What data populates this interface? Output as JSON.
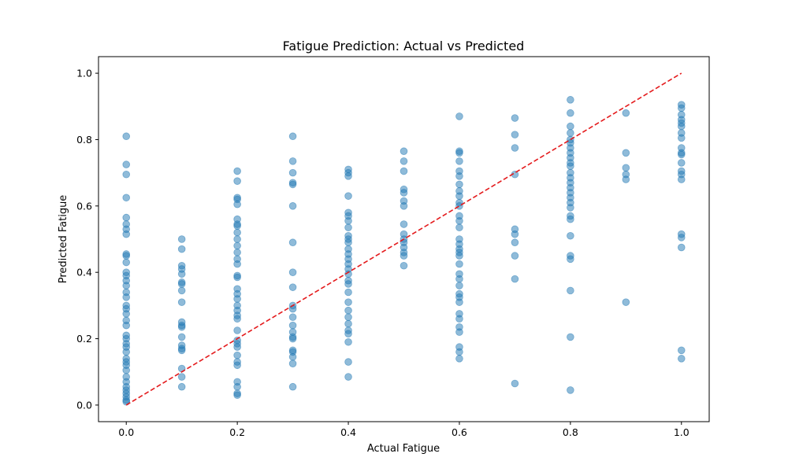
{
  "chart_data": {
    "type": "scatter",
    "title": "Fatigue Prediction: Actual vs Predicted",
    "xlabel": "Actual Fatigue",
    "ylabel": "Predicted Fatigue",
    "xlim": [
      -0.05,
      1.05
    ],
    "ylim": [
      -0.05,
      1.05
    ],
    "xticks": [
      "0.0",
      "0.2",
      "0.4",
      "0.6",
      "0.8",
      "1.0"
    ],
    "yticks": [
      "0.0",
      "0.2",
      "0.4",
      "0.6",
      "0.8",
      "1.0"
    ],
    "grid": false,
    "point_color": "#1f77b4",
    "reference_line": {
      "x": [
        0,
        1
      ],
      "y": [
        0,
        1
      ],
      "color": "#e41a1c",
      "style": "dashed"
    },
    "points": [
      {
        "x": 0.0,
        "y": 0.81
      },
      {
        "x": 0.0,
        "y": 0.725
      },
      {
        "x": 0.0,
        "y": 0.695
      },
      {
        "x": 0.0,
        "y": 0.625
      },
      {
        "x": 0.0,
        "y": 0.565
      },
      {
        "x": 0.0,
        "y": 0.545
      },
      {
        "x": 0.0,
        "y": 0.53
      },
      {
        "x": 0.0,
        "y": 0.515
      },
      {
        "x": 0.0,
        "y": 0.455
      },
      {
        "x": 0.0,
        "y": 0.45
      },
      {
        "x": 0.0,
        "y": 0.43
      },
      {
        "x": 0.0,
        "y": 0.4
      },
      {
        "x": 0.0,
        "y": 0.39
      },
      {
        "x": 0.0,
        "y": 0.375
      },
      {
        "x": 0.0,
        "y": 0.36
      },
      {
        "x": 0.0,
        "y": 0.34
      },
      {
        "x": 0.0,
        "y": 0.325
      },
      {
        "x": 0.0,
        "y": 0.3
      },
      {
        "x": 0.0,
        "y": 0.29
      },
      {
        "x": 0.0,
        "y": 0.275
      },
      {
        "x": 0.0,
        "y": 0.255
      },
      {
        "x": 0.0,
        "y": 0.24
      },
      {
        "x": 0.0,
        "y": 0.21
      },
      {
        "x": 0.0,
        "y": 0.2
      },
      {
        "x": 0.0,
        "y": 0.185
      },
      {
        "x": 0.0,
        "y": 0.175
      },
      {
        "x": 0.0,
        "y": 0.16
      },
      {
        "x": 0.0,
        "y": 0.14
      },
      {
        "x": 0.0,
        "y": 0.13
      },
      {
        "x": 0.0,
        "y": 0.12
      },
      {
        "x": 0.0,
        "y": 0.105
      },
      {
        "x": 0.0,
        "y": 0.085
      },
      {
        "x": 0.0,
        "y": 0.07
      },
      {
        "x": 0.0,
        "y": 0.055
      },
      {
        "x": 0.0,
        "y": 0.045
      },
      {
        "x": 0.0,
        "y": 0.035
      },
      {
        "x": 0.0,
        "y": 0.025
      },
      {
        "x": 0.0,
        "y": 0.015
      },
      {
        "x": 0.0,
        "y": 0.01
      },
      {
        "x": 0.1,
        "y": 0.5
      },
      {
        "x": 0.1,
        "y": 0.47
      },
      {
        "x": 0.1,
        "y": 0.42
      },
      {
        "x": 0.1,
        "y": 0.41
      },
      {
        "x": 0.1,
        "y": 0.395
      },
      {
        "x": 0.1,
        "y": 0.37
      },
      {
        "x": 0.1,
        "y": 0.365
      },
      {
        "x": 0.1,
        "y": 0.345
      },
      {
        "x": 0.1,
        "y": 0.31
      },
      {
        "x": 0.1,
        "y": 0.25
      },
      {
        "x": 0.1,
        "y": 0.24
      },
      {
        "x": 0.1,
        "y": 0.235
      },
      {
        "x": 0.1,
        "y": 0.205
      },
      {
        "x": 0.1,
        "y": 0.18
      },
      {
        "x": 0.1,
        "y": 0.17
      },
      {
        "x": 0.1,
        "y": 0.165
      },
      {
        "x": 0.1,
        "y": 0.11
      },
      {
        "x": 0.1,
        "y": 0.085
      },
      {
        "x": 0.1,
        "y": 0.055
      },
      {
        "x": 0.2,
        "y": 0.705
      },
      {
        "x": 0.2,
        "y": 0.675
      },
      {
        "x": 0.2,
        "y": 0.625
      },
      {
        "x": 0.2,
        "y": 0.62
      },
      {
        "x": 0.2,
        "y": 0.605
      },
      {
        "x": 0.2,
        "y": 0.56
      },
      {
        "x": 0.2,
        "y": 0.545
      },
      {
        "x": 0.2,
        "y": 0.54
      },
      {
        "x": 0.2,
        "y": 0.52
      },
      {
        "x": 0.2,
        "y": 0.5
      },
      {
        "x": 0.2,
        "y": 0.48
      },
      {
        "x": 0.2,
        "y": 0.46
      },
      {
        "x": 0.2,
        "y": 0.44
      },
      {
        "x": 0.2,
        "y": 0.425
      },
      {
        "x": 0.2,
        "y": 0.39
      },
      {
        "x": 0.2,
        "y": 0.385
      },
      {
        "x": 0.2,
        "y": 0.35
      },
      {
        "x": 0.2,
        "y": 0.335
      },
      {
        "x": 0.2,
        "y": 0.32
      },
      {
        "x": 0.2,
        "y": 0.3
      },
      {
        "x": 0.2,
        "y": 0.285
      },
      {
        "x": 0.2,
        "y": 0.27
      },
      {
        "x": 0.2,
        "y": 0.26
      },
      {
        "x": 0.2,
        "y": 0.225
      },
      {
        "x": 0.2,
        "y": 0.195
      },
      {
        "x": 0.2,
        "y": 0.185
      },
      {
        "x": 0.2,
        "y": 0.175
      },
      {
        "x": 0.2,
        "y": 0.15
      },
      {
        "x": 0.2,
        "y": 0.13
      },
      {
        "x": 0.2,
        "y": 0.12
      },
      {
        "x": 0.2,
        "y": 0.07
      },
      {
        "x": 0.2,
        "y": 0.055
      },
      {
        "x": 0.2,
        "y": 0.035
      },
      {
        "x": 0.2,
        "y": 0.03
      },
      {
        "x": 0.3,
        "y": 0.81
      },
      {
        "x": 0.3,
        "y": 0.735
      },
      {
        "x": 0.3,
        "y": 0.7
      },
      {
        "x": 0.3,
        "y": 0.67
      },
      {
        "x": 0.3,
        "y": 0.665
      },
      {
        "x": 0.3,
        "y": 0.6
      },
      {
        "x": 0.3,
        "y": 0.49
      },
      {
        "x": 0.3,
        "y": 0.4
      },
      {
        "x": 0.3,
        "y": 0.355
      },
      {
        "x": 0.3,
        "y": 0.3
      },
      {
        "x": 0.3,
        "y": 0.29
      },
      {
        "x": 0.3,
        "y": 0.265
      },
      {
        "x": 0.3,
        "y": 0.24
      },
      {
        "x": 0.3,
        "y": 0.22
      },
      {
        "x": 0.3,
        "y": 0.205
      },
      {
        "x": 0.3,
        "y": 0.2
      },
      {
        "x": 0.3,
        "y": 0.165
      },
      {
        "x": 0.3,
        "y": 0.16
      },
      {
        "x": 0.3,
        "y": 0.145
      },
      {
        "x": 0.3,
        "y": 0.125
      },
      {
        "x": 0.3,
        "y": 0.055
      },
      {
        "x": 0.4,
        "y": 0.71
      },
      {
        "x": 0.4,
        "y": 0.7
      },
      {
        "x": 0.4,
        "y": 0.69
      },
      {
        "x": 0.4,
        "y": 0.63
      },
      {
        "x": 0.4,
        "y": 0.58
      },
      {
        "x": 0.4,
        "y": 0.57
      },
      {
        "x": 0.4,
        "y": 0.555
      },
      {
        "x": 0.4,
        "y": 0.535
      },
      {
        "x": 0.4,
        "y": 0.51
      },
      {
        "x": 0.4,
        "y": 0.5
      },
      {
        "x": 0.4,
        "y": 0.49
      },
      {
        "x": 0.4,
        "y": 0.47
      },
      {
        "x": 0.4,
        "y": 0.455
      },
      {
        "x": 0.4,
        "y": 0.44
      },
      {
        "x": 0.4,
        "y": 0.425
      },
      {
        "x": 0.4,
        "y": 0.41
      },
      {
        "x": 0.4,
        "y": 0.395
      },
      {
        "x": 0.4,
        "y": 0.375
      },
      {
        "x": 0.4,
        "y": 0.365
      },
      {
        "x": 0.4,
        "y": 0.34
      },
      {
        "x": 0.4,
        "y": 0.31
      },
      {
        "x": 0.4,
        "y": 0.285
      },
      {
        "x": 0.4,
        "y": 0.265
      },
      {
        "x": 0.4,
        "y": 0.245
      },
      {
        "x": 0.4,
        "y": 0.225
      },
      {
        "x": 0.4,
        "y": 0.215
      },
      {
        "x": 0.4,
        "y": 0.19
      },
      {
        "x": 0.4,
        "y": 0.13
      },
      {
        "x": 0.4,
        "y": 0.085
      },
      {
        "x": 0.5,
        "y": 0.765
      },
      {
        "x": 0.5,
        "y": 0.735
      },
      {
        "x": 0.5,
        "y": 0.705
      },
      {
        "x": 0.5,
        "y": 0.65
      },
      {
        "x": 0.5,
        "y": 0.64
      },
      {
        "x": 0.5,
        "y": 0.615
      },
      {
        "x": 0.5,
        "y": 0.6
      },
      {
        "x": 0.5,
        "y": 0.545
      },
      {
        "x": 0.5,
        "y": 0.515
      },
      {
        "x": 0.5,
        "y": 0.5
      },
      {
        "x": 0.5,
        "y": 0.49
      },
      {
        "x": 0.5,
        "y": 0.475
      },
      {
        "x": 0.5,
        "y": 0.46
      },
      {
        "x": 0.5,
        "y": 0.45
      },
      {
        "x": 0.5,
        "y": 0.42
      },
      {
        "x": 0.6,
        "y": 0.87
      },
      {
        "x": 0.6,
        "y": 0.765
      },
      {
        "x": 0.6,
        "y": 0.76
      },
      {
        "x": 0.6,
        "y": 0.735
      },
      {
        "x": 0.6,
        "y": 0.705
      },
      {
        "x": 0.6,
        "y": 0.69
      },
      {
        "x": 0.6,
        "y": 0.665
      },
      {
        "x": 0.6,
        "y": 0.645
      },
      {
        "x": 0.6,
        "y": 0.63
      },
      {
        "x": 0.6,
        "y": 0.61
      },
      {
        "x": 0.6,
        "y": 0.6
      },
      {
        "x": 0.6,
        "y": 0.57
      },
      {
        "x": 0.6,
        "y": 0.555
      },
      {
        "x": 0.6,
        "y": 0.535
      },
      {
        "x": 0.6,
        "y": 0.5
      },
      {
        "x": 0.6,
        "y": 0.485
      },
      {
        "x": 0.6,
        "y": 0.47
      },
      {
        "x": 0.6,
        "y": 0.46
      },
      {
        "x": 0.6,
        "y": 0.45
      },
      {
        "x": 0.6,
        "y": 0.425
      },
      {
        "x": 0.6,
        "y": 0.395
      },
      {
        "x": 0.6,
        "y": 0.38
      },
      {
        "x": 0.6,
        "y": 0.36
      },
      {
        "x": 0.6,
        "y": 0.335
      },
      {
        "x": 0.6,
        "y": 0.325
      },
      {
        "x": 0.6,
        "y": 0.31
      },
      {
        "x": 0.6,
        "y": 0.275
      },
      {
        "x": 0.6,
        "y": 0.26
      },
      {
        "x": 0.6,
        "y": 0.235
      },
      {
        "x": 0.6,
        "y": 0.22
      },
      {
        "x": 0.6,
        "y": 0.175
      },
      {
        "x": 0.6,
        "y": 0.16
      },
      {
        "x": 0.6,
        "y": 0.14
      },
      {
        "x": 0.7,
        "y": 0.865
      },
      {
        "x": 0.7,
        "y": 0.815
      },
      {
        "x": 0.7,
        "y": 0.775
      },
      {
        "x": 0.7,
        "y": 0.695
      },
      {
        "x": 0.7,
        "y": 0.53
      },
      {
        "x": 0.7,
        "y": 0.515
      },
      {
        "x": 0.7,
        "y": 0.49
      },
      {
        "x": 0.7,
        "y": 0.45
      },
      {
        "x": 0.7,
        "y": 0.38
      },
      {
        "x": 0.7,
        "y": 0.065
      },
      {
        "x": 0.8,
        "y": 0.92
      },
      {
        "x": 0.8,
        "y": 0.88
      },
      {
        "x": 0.8,
        "y": 0.84
      },
      {
        "x": 0.8,
        "y": 0.82
      },
      {
        "x": 0.8,
        "y": 0.8
      },
      {
        "x": 0.8,
        "y": 0.79
      },
      {
        "x": 0.8,
        "y": 0.775
      },
      {
        "x": 0.8,
        "y": 0.76
      },
      {
        "x": 0.8,
        "y": 0.745
      },
      {
        "x": 0.8,
        "y": 0.73
      },
      {
        "x": 0.8,
        "y": 0.72
      },
      {
        "x": 0.8,
        "y": 0.7
      },
      {
        "x": 0.8,
        "y": 0.685
      },
      {
        "x": 0.8,
        "y": 0.67
      },
      {
        "x": 0.8,
        "y": 0.655
      },
      {
        "x": 0.8,
        "y": 0.64
      },
      {
        "x": 0.8,
        "y": 0.625
      },
      {
        "x": 0.8,
        "y": 0.61
      },
      {
        "x": 0.8,
        "y": 0.595
      },
      {
        "x": 0.8,
        "y": 0.57
      },
      {
        "x": 0.8,
        "y": 0.56
      },
      {
        "x": 0.8,
        "y": 0.51
      },
      {
        "x": 0.8,
        "y": 0.45
      },
      {
        "x": 0.8,
        "y": 0.44
      },
      {
        "x": 0.8,
        "y": 0.345
      },
      {
        "x": 0.8,
        "y": 0.205
      },
      {
        "x": 0.8,
        "y": 0.045
      },
      {
        "x": 0.9,
        "y": 0.88
      },
      {
        "x": 0.9,
        "y": 0.76
      },
      {
        "x": 0.9,
        "y": 0.715
      },
      {
        "x": 0.9,
        "y": 0.695
      },
      {
        "x": 0.9,
        "y": 0.68
      },
      {
        "x": 0.9,
        "y": 0.31
      },
      {
        "x": 1.0,
        "y": 0.905
      },
      {
        "x": 1.0,
        "y": 0.895
      },
      {
        "x": 1.0,
        "y": 0.875
      },
      {
        "x": 1.0,
        "y": 0.86
      },
      {
        "x": 1.0,
        "y": 0.85
      },
      {
        "x": 1.0,
        "y": 0.84
      },
      {
        "x": 1.0,
        "y": 0.82
      },
      {
        "x": 1.0,
        "y": 0.805
      },
      {
        "x": 1.0,
        "y": 0.775
      },
      {
        "x": 1.0,
        "y": 0.76
      },
      {
        "x": 1.0,
        "y": 0.755
      },
      {
        "x": 1.0,
        "y": 0.73
      },
      {
        "x": 1.0,
        "y": 0.705
      },
      {
        "x": 1.0,
        "y": 0.695
      },
      {
        "x": 1.0,
        "y": 0.68
      },
      {
        "x": 1.0,
        "y": 0.515
      },
      {
        "x": 1.0,
        "y": 0.505
      },
      {
        "x": 1.0,
        "y": 0.475
      },
      {
        "x": 1.0,
        "y": 0.165
      },
      {
        "x": 1.0,
        "y": 0.14
      }
    ]
  }
}
